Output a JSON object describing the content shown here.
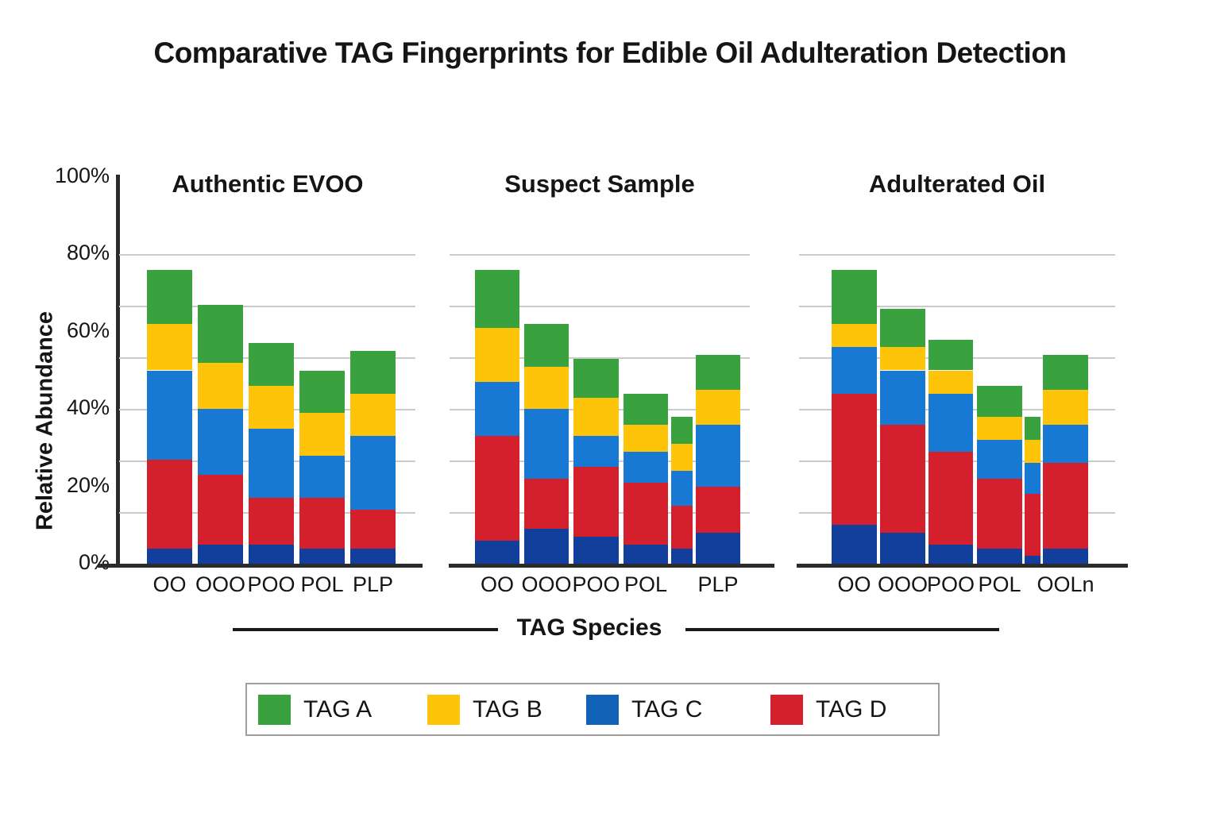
{
  "title": "Comparative TAG Fingerprints for Edible Oil Adulteration Detection",
  "y_axis": {
    "label": "Relative Abundance",
    "ticks": [
      "0%",
      "20%",
      "40%",
      "60%",
      "80%",
      "100%"
    ]
  },
  "x_axis": {
    "caption": "TAG Species"
  },
  "legend": {
    "items": [
      {
        "label": "TAG A",
        "color": "#3aa13f"
      },
      {
        "label": "TAG B",
        "color": "#fdc40a"
      },
      {
        "label": "TAG C",
        "color": "#1263b8"
      },
      {
        "label": "TAG D",
        "color": "#d4202c"
      }
    ]
  },
  "chart_data": {
    "type": "bar",
    "stacked": true,
    "title": "Comparative TAG Fingerprints for Edible Oil Adulteration Detection",
    "xlabel": "TAG Species",
    "ylabel": "Relative Abundance",
    "ylim": [
      0,
      100
    ],
    "y_ticks_pct": [
      0,
      20,
      40,
      60,
      80,
      100
    ],
    "gridlines_pct": [
      13.3,
      26.7,
      40,
      53.3,
      66.7,
      80
    ],
    "legend_position": "bottom",
    "units": "% relative abundance (stacked segment heights estimated from gridlines)",
    "series_names_bottom_to_top": [
      "TAG C (dark base)",
      "TAG D",
      "TAG C",
      "TAG B",
      "TAG A"
    ],
    "series_colors_bottom_to_top": [
      "#123f9b",
      "#d4202c",
      "#1779d3",
      "#fdc40a",
      "#3aa13f"
    ],
    "panels": [
      {
        "title": "Authentic EVOO",
        "categories": [
          "OO",
          "OOO",
          "POO",
          "POL",
          "PLP"
        ],
        "bar_totals": [
          76,
          67,
          57,
          50,
          55
        ],
        "series": [
          {
            "name": "TAG C (dark base)",
            "values": [
              4,
              5,
              5,
              4,
              4
            ]
          },
          {
            "name": "TAG D",
            "values": [
              23,
              18,
              12,
              13,
              10
            ]
          },
          {
            "name": "TAG C",
            "values": [
              23,
              17,
              18,
              11,
              19
            ]
          },
          {
            "name": "TAG B",
            "values": [
              12,
              12,
              11,
              11,
              11
            ]
          },
          {
            "name": "TAG A",
            "values": [
              14,
              15,
              11,
              11,
              11
            ]
          }
        ]
      },
      {
        "title": "Suspect Sample",
        "categories": [
          "OO",
          "OOO",
          "POO",
          "POL",
          "",
          "PLP"
        ],
        "narrow_bar_indices": [
          4
        ],
        "bar_totals": [
          76,
          62,
          53,
          44,
          38,
          54
        ],
        "series": [
          {
            "name": "TAG C (dark base)",
            "values": [
              6,
              9,
              7,
              5,
              4,
              8
            ]
          },
          {
            "name": "TAG D",
            "values": [
              27,
              13,
              18,
              16,
              11,
              12
            ]
          },
          {
            "name": "TAG C",
            "values": [
              14,
              18,
              8,
              8,
              9,
              16
            ]
          },
          {
            "name": "TAG B",
            "values": [
              14,
              11,
              10,
              7,
              7,
              9
            ]
          },
          {
            "name": "TAG A",
            "values": [
              15,
              11,
              10,
              8,
              7,
              9
            ]
          }
        ]
      },
      {
        "title": "Adulterated Oil",
        "categories": [
          "OO",
          "OOO",
          "POO",
          "POL",
          "",
          "OOLn"
        ],
        "narrow_bar_indices": [
          4
        ],
        "bar_totals": [
          76,
          66,
          58,
          46,
          38,
          54
        ],
        "series": [
          {
            "name": "TAG C (dark base)",
            "values": [
              10,
              8,
              5,
              4,
              2,
              4
            ]
          },
          {
            "name": "TAG D",
            "values": [
              34,
              28,
              24,
              18,
              16,
              22
            ]
          },
          {
            "name": "TAG C",
            "values": [
              12,
              14,
              15,
              10,
              8,
              10
            ]
          },
          {
            "name": "TAG B",
            "values": [
              6,
              6,
              6,
              6,
              6,
              9
            ]
          },
          {
            "name": "TAG A",
            "values": [
              14,
              10,
              8,
              8,
              6,
              9
            ]
          }
        ]
      }
    ]
  }
}
